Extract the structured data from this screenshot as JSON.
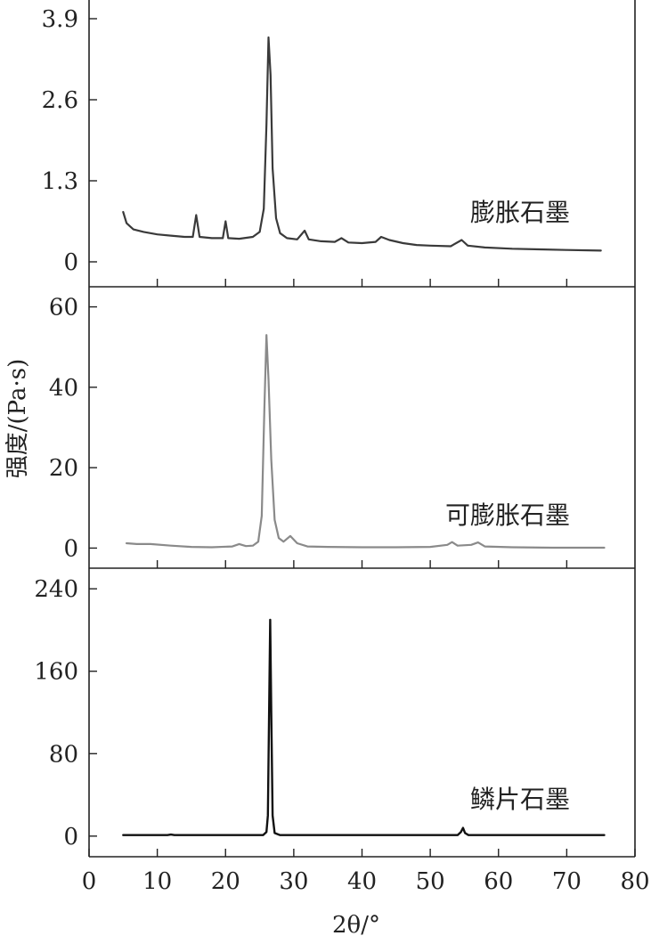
{
  "chart_data": {
    "type": "line",
    "xlabel": "2θ/°",
    "ylabel": "强度/(Pa·s)",
    "xlim": [
      0,
      80
    ],
    "xticks": [
      "0",
      "10",
      "20",
      "30",
      "40",
      "50",
      "60",
      "70",
      "80"
    ],
    "grid": false,
    "panels": [
      {
        "series_label": "膨胀石墨",
        "color": "#3a3a3a",
        "ylim": [
          -0.4,
          4.2
        ],
        "yticks": [
          "0",
          "1.3",
          "2.6",
          "3.9"
        ],
        "points": [
          [
            5.0,
            0.8
          ],
          [
            5.5,
            0.62
          ],
          [
            6.5,
            0.52
          ],
          [
            8.0,
            0.48
          ],
          [
            10.0,
            0.44
          ],
          [
            12.0,
            0.42
          ],
          [
            14.0,
            0.4
          ],
          [
            15.2,
            0.4
          ],
          [
            15.7,
            0.75
          ],
          [
            16.2,
            0.4
          ],
          [
            18.0,
            0.38
          ],
          [
            19.6,
            0.38
          ],
          [
            20.0,
            0.65
          ],
          [
            20.4,
            0.38
          ],
          [
            22.0,
            0.37
          ],
          [
            24.0,
            0.4
          ],
          [
            25.0,
            0.48
          ],
          [
            25.6,
            0.85
          ],
          [
            26.0,
            2.2
          ],
          [
            26.3,
            3.6
          ],
          [
            26.6,
            3.0
          ],
          [
            26.9,
            1.5
          ],
          [
            27.4,
            0.7
          ],
          [
            28.0,
            0.46
          ],
          [
            29.0,
            0.38
          ],
          [
            30.5,
            0.36
          ],
          [
            31.6,
            0.5
          ],
          [
            32.2,
            0.36
          ],
          [
            34.0,
            0.33
          ],
          [
            36.0,
            0.32
          ],
          [
            37.0,
            0.38
          ],
          [
            38.0,
            0.31
          ],
          [
            40.0,
            0.3
          ],
          [
            42.0,
            0.32
          ],
          [
            42.8,
            0.4
          ],
          [
            44.0,
            0.35
          ],
          [
            46.0,
            0.3
          ],
          [
            48.0,
            0.27
          ],
          [
            50.0,
            0.26
          ],
          [
            53.0,
            0.25
          ],
          [
            54.6,
            0.35
          ],
          [
            55.5,
            0.26
          ],
          [
            58.0,
            0.23
          ],
          [
            62.0,
            0.21
          ],
          [
            66.0,
            0.2
          ],
          [
            70.0,
            0.19
          ],
          [
            75.0,
            0.18
          ]
        ]
      },
      {
        "series_label": "可膨胀石墨",
        "color": "#8a8a8a",
        "ylim": [
          -5,
          65
        ],
        "yticks": [
          "0",
          "20",
          "40",
          "60"
        ],
        "points": [
          [
            5.5,
            1.2
          ],
          [
            7.0,
            1.0
          ],
          [
            9.0,
            1.0
          ],
          [
            12.0,
            0.6
          ],
          [
            15.0,
            0.3
          ],
          [
            18.0,
            0.2
          ],
          [
            21.0,
            0.4
          ],
          [
            22.0,
            1.0
          ],
          [
            23.0,
            0.5
          ],
          [
            24.0,
            0.6
          ],
          [
            24.8,
            1.6
          ],
          [
            25.3,
            8.0
          ],
          [
            25.7,
            35.0
          ],
          [
            26.0,
            53.0
          ],
          [
            26.3,
            42.0
          ],
          [
            26.7,
            22.0
          ],
          [
            27.2,
            7.0
          ],
          [
            27.8,
            2.5
          ],
          [
            28.5,
            1.6
          ],
          [
            29.5,
            3.0
          ],
          [
            30.5,
            1.2
          ],
          [
            32.0,
            0.4
          ],
          [
            35.0,
            0.3
          ],
          [
            40.0,
            0.2
          ],
          [
            45.0,
            0.2
          ],
          [
            50.0,
            0.3
          ],
          [
            52.5,
            0.8
          ],
          [
            53.2,
            1.5
          ],
          [
            54.0,
            0.6
          ],
          [
            56.0,
            0.8
          ],
          [
            57.0,
            1.4
          ],
          [
            58.0,
            0.4
          ],
          [
            62.0,
            0.2
          ],
          [
            68.0,
            0.1
          ],
          [
            75.5,
            0.1
          ]
        ]
      },
      {
        "series_label": "鳞片石墨",
        "color": "#111111",
        "ylim": [
          -20,
          260
        ],
        "yticks": [
          "0",
          "80",
          "160",
          "240"
        ],
        "points": [
          [
            5.0,
            1.0
          ],
          [
            11.5,
            1.0
          ],
          [
            12.0,
            1.5
          ],
          [
            12.5,
            1.0
          ],
          [
            20.0,
            1.0
          ],
          [
            25.5,
            1.0
          ],
          [
            26.0,
            4.0
          ],
          [
            26.2,
            20.0
          ],
          [
            26.4,
            130.0
          ],
          [
            26.55,
            210.0
          ],
          [
            26.7,
            120.0
          ],
          [
            26.9,
            20.0
          ],
          [
            27.2,
            3.0
          ],
          [
            28.0,
            1.0
          ],
          [
            40.0,
            1.0
          ],
          [
            54.0,
            1.0
          ],
          [
            54.5,
            4.0
          ],
          [
            54.8,
            8.0
          ],
          [
            55.1,
            3.0
          ],
          [
            55.6,
            1.0
          ],
          [
            65.0,
            1.0
          ],
          [
            75.5,
            1.0
          ]
        ]
      }
    ]
  }
}
